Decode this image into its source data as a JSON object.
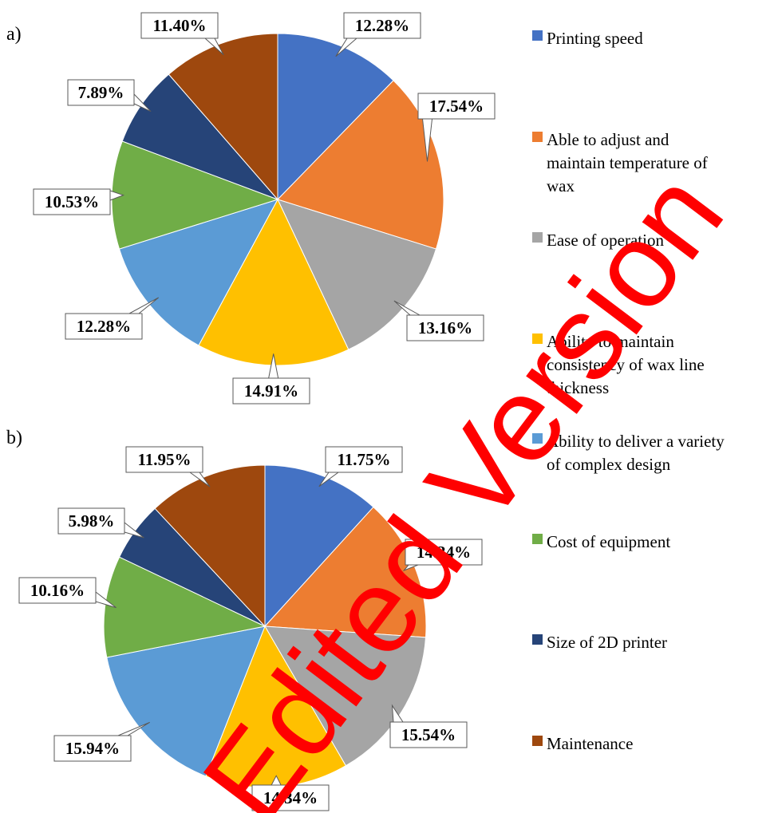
{
  "colors": [
    "#4472C4",
    "#ED7D31",
    "#A5A5A5",
    "#FFC000",
    "#5B9BD5",
    "#70AD47",
    "#264478",
    "#9E480E"
  ],
  "legend": {
    "placement": "right",
    "items": [
      {
        "lines": [
          "Printing speed"
        ]
      },
      {
        "lines": [
          "Able to adjust and",
          "maintain temperature of",
          "wax"
        ]
      },
      {
        "lines": [
          "Ease of operation"
        ]
      },
      {
        "lines": [
          "Ability to maintain",
          "consistency of wax line",
          "thickness"
        ]
      },
      {
        "lines": [
          "Ability to deliver a variety",
          "of complex design"
        ]
      },
      {
        "lines": [
          "Cost of equipment"
        ]
      },
      {
        "lines": [
          "Size of 2D printer"
        ]
      },
      {
        "lines": [
          "Maintenance"
        ]
      }
    ]
  },
  "watermark": {
    "text": "Edited Version",
    "color": "#ff0000"
  },
  "chart_data": [
    {
      "type": "pie",
      "panel_label": "a)",
      "categories": [
        "Printing speed",
        "Able to adjust and maintain temperature of wax",
        "Ease of operation",
        "Ability to maintain consistency of wax line thickness",
        "Ability to deliver a variety of complex design",
        "Cost of equipment",
        "Size of 2D printer",
        "Maintenance"
      ],
      "values": [
        12.28,
        17.54,
        13.16,
        14.91,
        12.28,
        10.53,
        7.89,
        11.4
      ],
      "data_labels": [
        "12.28%",
        "17.54%",
        "13.16%",
        "14.91%",
        "12.28%",
        "10.53%",
        "7.89%",
        "11.40%"
      ]
    },
    {
      "type": "pie",
      "panel_label": "b)",
      "categories": [
        "Printing speed",
        "Able to adjust and maintain temperature of wax",
        "Ease of operation",
        "Ability to maintain consistency of wax line thickness",
        "Ability to deliver a variety of complex design",
        "Cost of equipment",
        "Size of 2D printer",
        "Maintenance"
      ],
      "values": [
        11.75,
        14.34,
        15.54,
        14.34,
        15.94,
        10.16,
        5.98,
        11.95
      ],
      "data_labels": [
        "11.75%",
        "14.34%",
        "15.54%",
        "14.34%",
        "15.94%",
        "10.16%",
        "5.98%",
        "11.95%"
      ]
    }
  ]
}
